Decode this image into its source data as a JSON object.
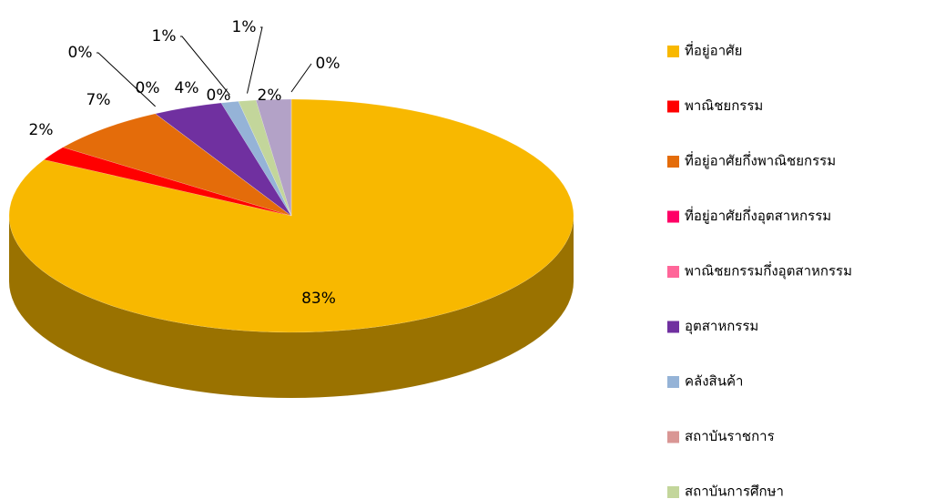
{
  "chart_data": {
    "type": "pie3d",
    "categories": [
      "ที่อยู่อาศัย",
      "พาณิชยกรรม",
      "ที่อยู่อาศัยกึ่งพาณิชยกรรม",
      "ที่อยู่อาศัยกึ่งอุตสาหกรรม",
      "พาณิชยกรรมกึ่งอุตสาหกรรม",
      "อุตสาหกรรม",
      "คลังสินค้า",
      "สถาบันราชการ",
      "สถาบันการศึกษา",
      null,
      null
    ],
    "values": [
      83,
      2,
      7,
      0,
      0,
      4,
      1,
      0,
      1,
      2,
      0
    ],
    "value_labels": [
      "83%",
      "2%",
      "7%",
      "0%",
      "0%",
      "4%",
      "1%",
      "0%",
      "1%",
      "2%",
      "0%"
    ],
    "colors": [
      "#f8b800",
      "#ff0000",
      "#e46c0a",
      "#ff0066",
      "#ff6699",
      "#7030a0",
      "#95b3d7",
      "#d99694",
      "#c3d69b",
      "#b3a2c7",
      "#8db4e2"
    ],
    "legend": "right"
  }
}
